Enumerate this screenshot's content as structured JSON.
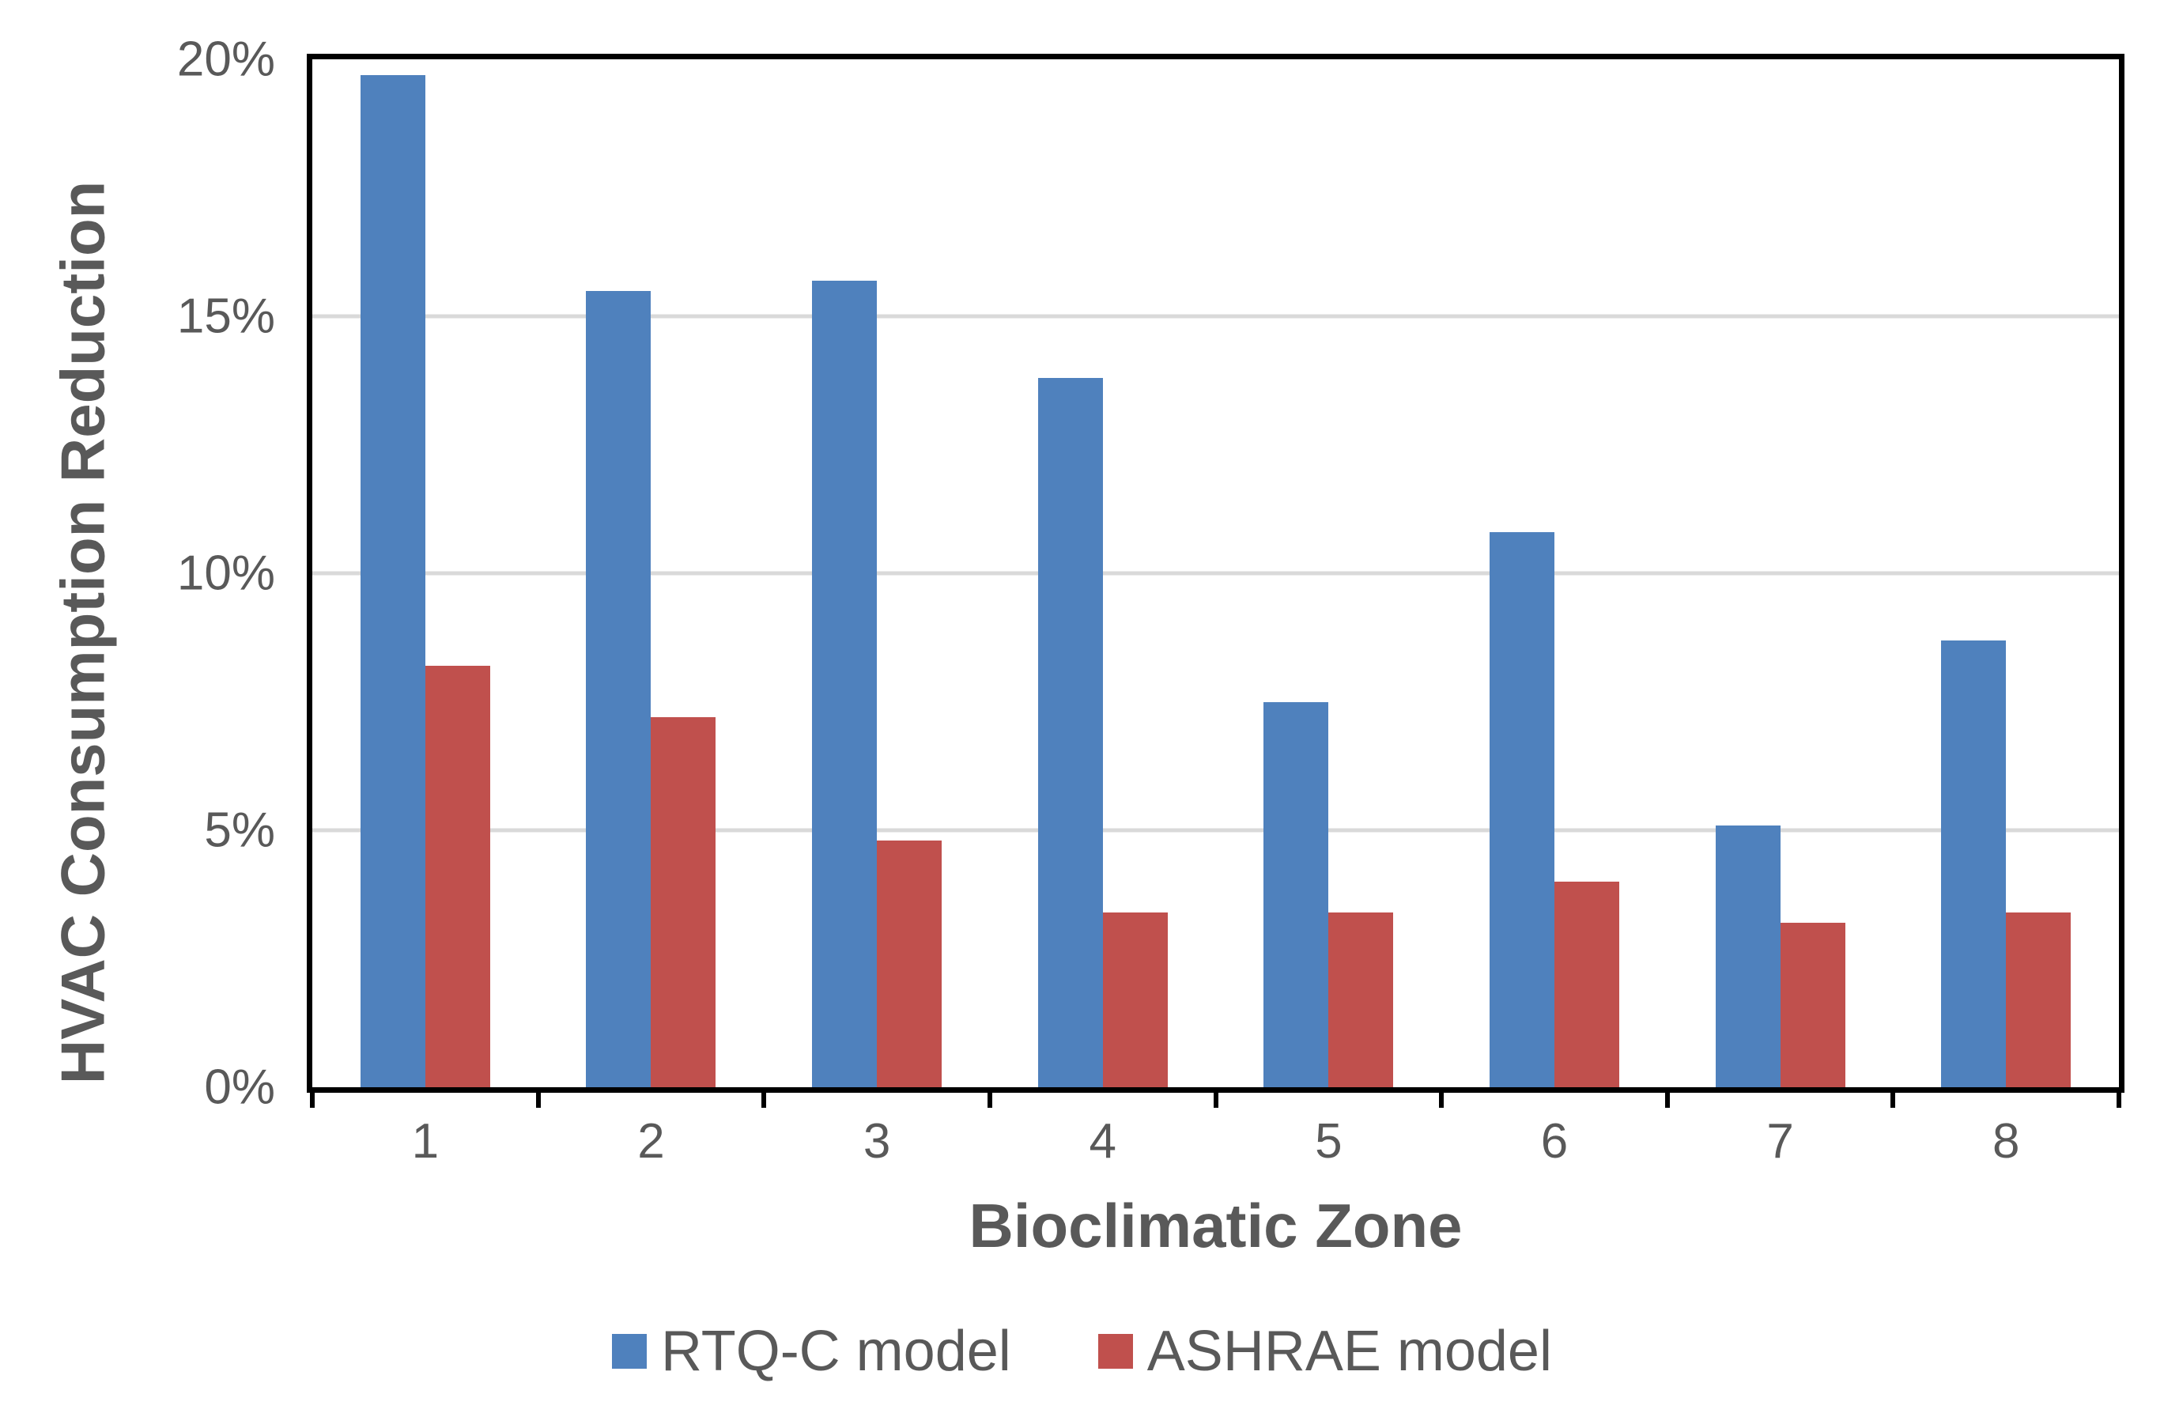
{
  "figure": {
    "y_axis": {
      "title": "HVAC Consumption Reduction",
      "tick_labels": [
        "20%",
        "15%",
        "10%",
        "5%",
        "0%"
      ]
    },
    "x_axis": {
      "title": "Bioclimatic Zone",
      "tick_labels": [
        "1",
        "2",
        "3",
        "4",
        "5",
        "6",
        "7",
        "8"
      ]
    },
    "legend": {
      "items": [
        {
          "label": "RTQ-C model",
          "color": "#4F81BD"
        },
        {
          "label": "ASHRAE model",
          "color": "#C0504D"
        }
      ]
    }
  },
  "chart_data": {
    "type": "bar",
    "categories": [
      "1",
      "2",
      "3",
      "4",
      "5",
      "6",
      "7",
      "8"
    ],
    "series": [
      {
        "name": "RTQ-C model",
        "color": "#4F81BD",
        "values": [
          19.7,
          15.5,
          15.7,
          13.8,
          7.5,
          10.8,
          5.1,
          8.7
        ]
      },
      {
        "name": "ASHRAE model",
        "color": "#C0504D",
        "values": [
          8.2,
          7.2,
          4.8,
          3.4,
          3.4,
          4.0,
          3.2,
          3.4
        ]
      }
    ],
    "title": "",
    "xlabel": "Bioclimatic Zone",
    "ylabel": "HVAC Consumption Reduction",
    "ylim": [
      0,
      20
    ],
    "y_ticks": [
      0,
      5,
      10,
      15,
      20
    ],
    "y_tick_suffix": "%",
    "grid": "horizontal",
    "gridline_values": [
      5,
      10,
      15
    ],
    "legend_position": "bottom",
    "bar_color_names": {
      "RTQ-C model": "blue",
      "ASHRAE model": "red"
    }
  },
  "colors": {
    "text": "#595959",
    "gridline": "#D9D9D9",
    "axis_border": "#000000",
    "background": "#FFFFFF"
  }
}
